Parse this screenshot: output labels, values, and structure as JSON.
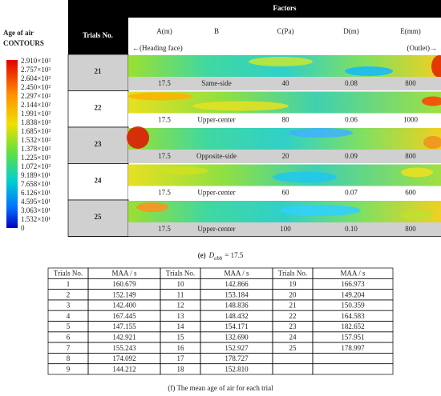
{
  "legend": {
    "title": [
      "Age of air",
      "CONTOURS"
    ],
    "ticks": [
      "2.910×10²",
      "2.757×10²",
      "2.604×10²",
      "2.450×10²",
      "2.297×10²",
      "2.144×10²",
      "1.991×10²",
      "1.838×10²",
      "1.685×10²",
      "1.532×10²",
      "1.378×10²",
      "1.225×10²",
      "1.072×10²",
      "9.189×10¹",
      "7.658×10¹",
      "6.126×10¹",
      "4.595×10¹",
      "3.063×10¹",
      "1.532×10¹",
      "0"
    ]
  },
  "design": {
    "trials_header": "Trials No.",
    "factors_header": "Factors",
    "factors": [
      "A(m)",
      "B",
      "C(Pa)",
      "D(m)",
      "E(mm)"
    ],
    "left_note": "←(Heading face)",
    "right_note": "(Outlet)→",
    "rows": [
      {
        "trial": "21",
        "values": [
          "17.5",
          "Same-side",
          "40",
          "0.08",
          "800"
        ]
      },
      {
        "trial": "22",
        "values": [
          "17.5",
          "Upper-center",
          "80",
          "0.06",
          "1000"
        ]
      },
      {
        "trial": "23",
        "values": [
          "17.5",
          "Opposite-side",
          "20",
          "0.09",
          "800"
        ]
      },
      {
        "trial": "24",
        "values": [
          "17.5",
          "Upper-center",
          "60",
          "0.07",
          "600"
        ]
      },
      {
        "trial": "25",
        "values": [
          "17.5",
          "Upper-center",
          "100",
          "0.10",
          "800"
        ]
      }
    ]
  },
  "caption_e": {
    "label": "(e)",
    "symbol": "D",
    "subscript": "ebb",
    "rest": "= 17.5"
  },
  "maa_table": {
    "header": [
      "Trials No.",
      "MAA / s",
      "Trials No.",
      "MAA / s",
      "Trials No.",
      "MAA / s"
    ],
    "rows": [
      [
        "1",
        "160.679",
        "10",
        "142.866",
        "19",
        "166.973"
      ],
      [
        "2",
        "152.149",
        "11",
        "153.184",
        "20",
        "149.204"
      ],
      [
        "3",
        "142.400",
        "12",
        "148.836",
        "21",
        "150.359"
      ],
      [
        "4",
        "167.445",
        "13",
        "148.432",
        "22",
        "164.583"
      ],
      [
        "5",
        "147.155",
        "14",
        "154.171",
        "23",
        "182.652"
      ],
      [
        "6",
        "142.921",
        "15",
        "132.690",
        "24",
        "157.951"
      ],
      [
        "7",
        "155.243",
        "16",
        "152.927",
        "25",
        "178.997"
      ],
      [
        "8",
        "174.092",
        "17",
        "178.727"
      ],
      [
        "9",
        "144.212",
        "18",
        "152.810"
      ]
    ]
  },
  "caption_f": "(f) The mean age of air for each trial"
}
